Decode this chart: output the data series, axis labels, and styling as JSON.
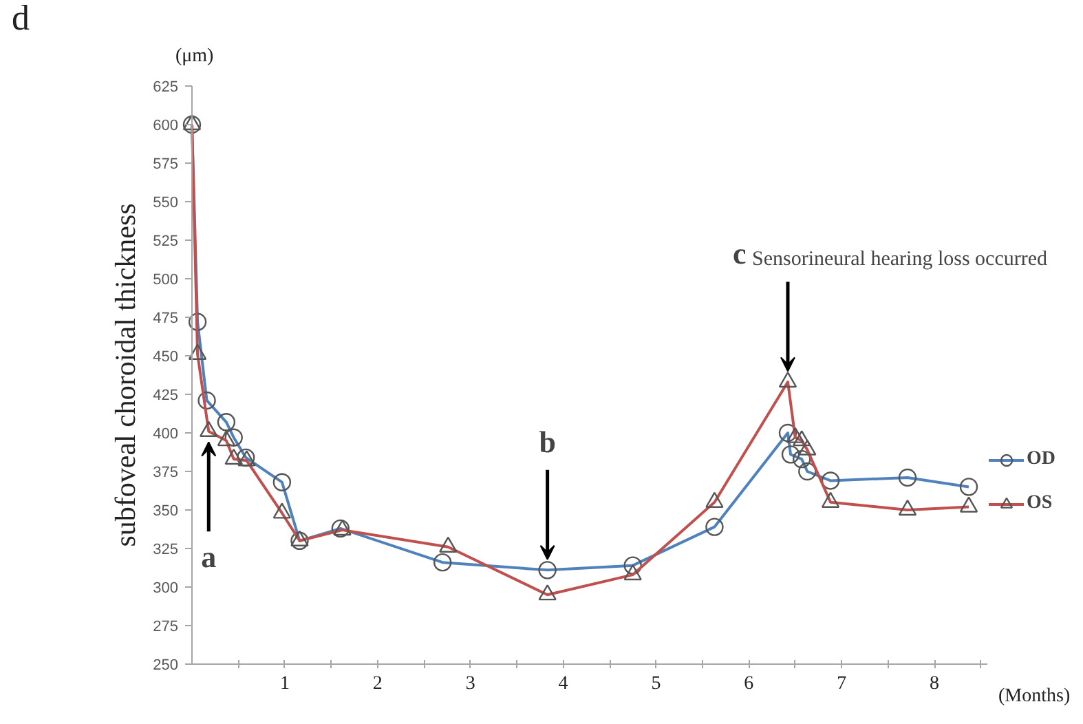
{
  "chart_data": {
    "type": "line",
    "title": "d",
    "ylabel": "subfoveal choroidal thickness",
    "xlabel": "(Months)",
    "xlim": [
      0,
      8.57
    ],
    "ylim": [
      250,
      625
    ],
    "xticks": [
      {
        "value": 0.5,
        "label": null
      },
      1,
      {
        "value": 1.5,
        "label": null
      },
      2,
      {
        "value": 2.5,
        "label": null
      },
      3,
      {
        "value": 3.5,
        "label": null
      },
      4,
      {
        "value": 4.5,
        "label": null
      },
      5,
      {
        "value": 5.5,
        "label": null
      },
      6,
      {
        "value": 6.5,
        "label": null
      },
      7,
      {
        "value": 7.5,
        "label": null
      },
      8,
      {
        "value": 8.5,
        "label": null
      }
    ],
    "yticks": [
      250,
      275,
      300,
      325,
      350,
      375,
      400,
      425,
      450,
      475,
      500,
      525,
      550,
      575,
      600,
      625
    ],
    "grid": false,
    "legend": "right",
    "line_style": "solid",
    "annotations": [
      "(μm)",
      {
        "text": "a",
        "x": 0.18,
        "y": 401
      },
      {
        "text": "b",
        "x": 3.83,
        "y": 311
      },
      {
        "text": "c Sensorineural hearing loss occurred",
        "x": 6.42,
        "y": 433
      }
    ],
    "series": [
      {
        "name": "OD",
        "color": "#4f81bd",
        "marker": "circle",
        "x": [
          0,
          0.06,
          0.16,
          0.37,
          0.45,
          0.58,
          0.97,
          1.16,
          1.6,
          2.7,
          3.83,
          4.75,
          5.63,
          6.42,
          6.45,
          6.57,
          6.63,
          6.88,
          7.71,
          8.37
        ],
        "values": [
          600,
          472,
          421,
          407,
          397,
          384,
          368,
          330,
          338,
          316,
          311,
          314,
          339,
          400,
          386,
          383,
          375,
          369,
          371,
          365
        ]
      },
      {
        "name": "OS",
        "color": "#c0504d",
        "marker": "triangle",
        "x": [
          0,
          0.06,
          0.18,
          0.37,
          0.45,
          0.59,
          0.97,
          1.16,
          1.62,
          2.76,
          3.83,
          4.75,
          5.63,
          6.42,
          6.5,
          6.57,
          6.63,
          6.88,
          7.71,
          8.37
        ],
        "values": [
          600,
          451,
          401,
          395,
          383,
          382,
          348,
          330,
          337,
          326,
          295,
          308,
          355,
          433,
          397,
          395,
          389,
          355,
          350,
          352
        ]
      }
    ]
  }
}
